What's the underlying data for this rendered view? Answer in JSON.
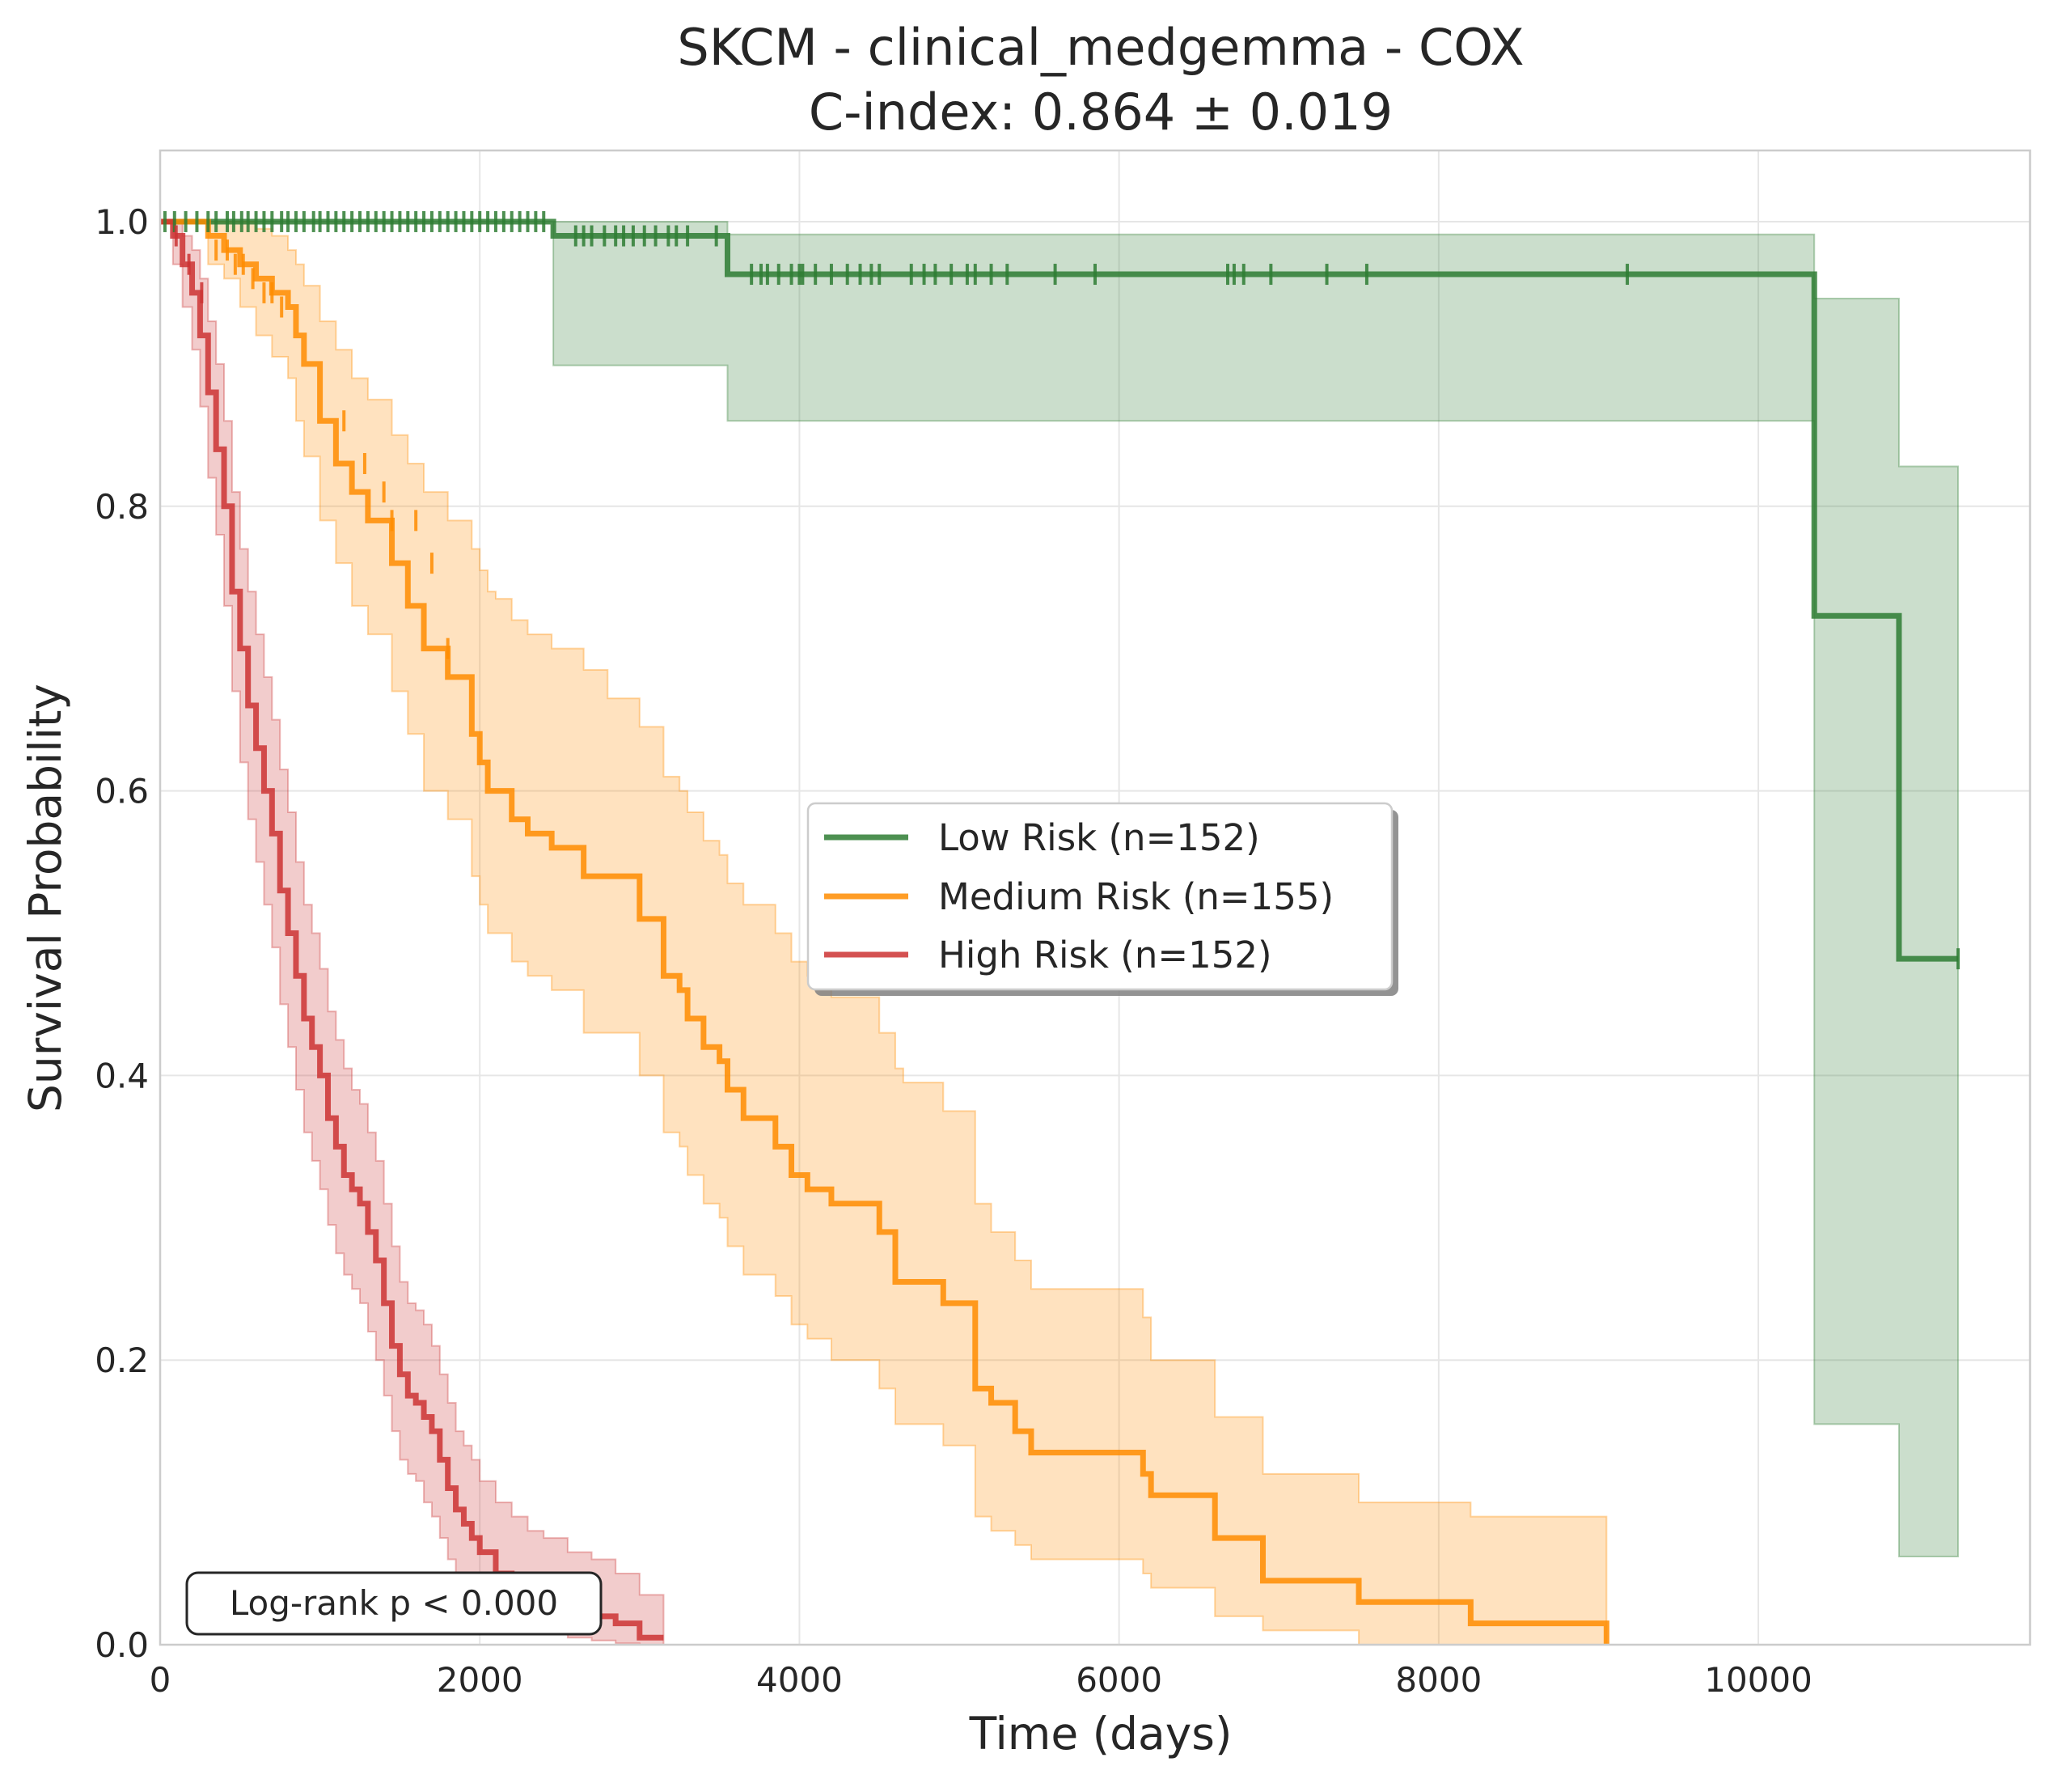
{
  "chart_data": {
    "type": "line",
    "subtype": "kaplan-meier",
    "title": "SKCM - clinical_medgemma - COX",
    "subtitle": "C-index: 0.864 ± 0.019",
    "xlabel": "Time (days)",
    "ylabel": "Survival Probability",
    "xlim": [
      0,
      11700
    ],
    "ylim": [
      0,
      1.05
    ],
    "xticks": [
      0,
      2000,
      4000,
      6000,
      8000,
      10000
    ],
    "xtick_labels": [
      "0",
      "2000",
      "4000",
      "6000",
      "8000",
      "10000"
    ],
    "yticks": [
      0,
      0.2,
      0.4,
      0.6,
      0.8,
      1.0
    ],
    "ytick_labels": [
      "0.0",
      "0.2",
      "0.4",
      "0.6",
      "0.8",
      "1.0"
    ],
    "grid": true,
    "legend_position": "center-right",
    "annotation": "Log-rank p < 0.000",
    "series": [
      {
        "name": "Low Risk (n=152)",
        "color": "#2e7d32",
        "x": [
          0,
          2460,
          3550,
          10350,
          10880,
          11250
        ],
        "y": [
          1.0,
          0.99,
          0.963,
          0.723,
          0.482,
          0.482
        ],
        "ci_upper": [
          1.0,
          1.0,
          0.991,
          0.946,
          0.828,
          0.828
        ],
        "ci_lower": [
          1.0,
          0.899,
          0.86,
          0.155,
          0.062,
          0.062
        ],
        "censor_x": [
          30,
          90,
          160,
          230,
          300,
          350,
          420,
          460,
          510,
          550,
          600,
          650,
          700,
          760,
          800,
          850,
          900,
          960,
          1000,
          1050,
          1100,
          1150,
          1200,
          1250,
          1300,
          1350,
          1400,
          1450,
          1500,
          1550,
          1600,
          1650,
          1700,
          1750,
          1800,
          1850,
          1900,
          1950,
          2000,
          2050,
          2100,
          2150,
          2200,
          2250,
          2300,
          2350,
          2400,
          2600,
          2650,
          2700,
          2780,
          2850,
          2900,
          2960,
          3030,
          3100,
          3180,
          3230,
          3300,
          3480,
          3700,
          3760,
          3800,
          3870,
          3950,
          4000,
          4020,
          4100,
          4200,
          4300,
          4380,
          4450,
          4500,
          4700,
          4780,
          4850,
          4950,
          5050,
          5100,
          5200,
          5300,
          5600,
          5850,
          6680,
          6720,
          6780,
          6950,
          7300,
          7550,
          9180,
          11250
        ],
        "censor_y": [
          1.0,
          1.0,
          1.0,
          1.0,
          1.0,
          1.0,
          1.0,
          1.0,
          1.0,
          1.0,
          1.0,
          1.0,
          1.0,
          1.0,
          1.0,
          1.0,
          1.0,
          1.0,
          1.0,
          1.0,
          1.0,
          1.0,
          1.0,
          1.0,
          1.0,
          1.0,
          1.0,
          1.0,
          1.0,
          1.0,
          1.0,
          1.0,
          1.0,
          1.0,
          1.0,
          1.0,
          1.0,
          1.0,
          1.0,
          1.0,
          1.0,
          1.0,
          1.0,
          1.0,
          1.0,
          1.0,
          1.0,
          0.99,
          0.99,
          0.99,
          0.99,
          0.99,
          0.99,
          0.99,
          0.99,
          0.99,
          0.99,
          0.99,
          0.99,
          0.99,
          0.963,
          0.963,
          0.963,
          0.963,
          0.963,
          0.963,
          0.963,
          0.963,
          0.963,
          0.963,
          0.963,
          0.963,
          0.963,
          0.963,
          0.963,
          0.963,
          0.963,
          0.963,
          0.963,
          0.963,
          0.963,
          0.963,
          0.963,
          0.963,
          0.963,
          0.963,
          0.963,
          0.963,
          0.963,
          0.963,
          0.482
        ]
      },
      {
        "name": "Medium Risk (n=155)",
        "color": "#ff8c00",
        "x": [
          0,
          300,
          400,
          500,
          600,
          700,
          800,
          850,
          900,
          1000,
          1100,
          1200,
          1300,
          1450,
          1550,
          1650,
          1800,
          1950,
          2000,
          2050,
          2100,
          2200,
          2300,
          2450,
          2650,
          2800,
          3000,
          3150,
          3250,
          3300,
          3400,
          3500,
          3550,
          3650,
          3850,
          3950,
          4050,
          4200,
          4500,
          4600,
          4650,
          4900,
          5100,
          5200,
          5350,
          5450,
          6150,
          6200,
          6600,
          6900,
          7500,
          8200,
          9050
        ],
        "y": [
          1.0,
          0.99,
          0.98,
          0.97,
          0.96,
          0.95,
          0.94,
          0.92,
          0.9,
          0.86,
          0.83,
          0.81,
          0.79,
          0.76,
          0.73,
          0.7,
          0.68,
          0.64,
          0.62,
          0.6,
          0.6,
          0.58,
          0.57,
          0.56,
          0.54,
          0.54,
          0.51,
          0.47,
          0.46,
          0.44,
          0.42,
          0.41,
          0.39,
          0.37,
          0.35,
          0.33,
          0.32,
          0.31,
          0.29,
          0.255,
          0.255,
          0.24,
          0.18,
          0.17,
          0.15,
          0.135,
          0.12,
          0.105,
          0.075,
          0.045,
          0.03,
          0.015,
          0.0
        ],
        "ci_upper": [
          1.0,
          1.0,
          1.0,
          1.0,
          0.995,
          0.99,
          0.98,
          0.97,
          0.955,
          0.93,
          0.91,
          0.89,
          0.875,
          0.85,
          0.83,
          0.81,
          0.79,
          0.77,
          0.755,
          0.74,
          0.735,
          0.72,
          0.71,
          0.7,
          0.685,
          0.665,
          0.645,
          0.61,
          0.6,
          0.585,
          0.565,
          0.555,
          0.535,
          0.52,
          0.5,
          0.48,
          0.47,
          0.455,
          0.43,
          0.405,
          0.395,
          0.375,
          0.31,
          0.29,
          0.27,
          0.25,
          0.23,
          0.2,
          0.16,
          0.12,
          0.1,
          0.09,
          0.07
        ],
        "ci_lower": [
          1.0,
          0.97,
          0.96,
          0.94,
          0.92,
          0.905,
          0.89,
          0.86,
          0.835,
          0.79,
          0.76,
          0.73,
          0.71,
          0.67,
          0.64,
          0.6,
          0.58,
          0.54,
          0.52,
          0.5,
          0.5,
          0.48,
          0.47,
          0.46,
          0.43,
          0.43,
          0.4,
          0.36,
          0.35,
          0.33,
          0.31,
          0.3,
          0.28,
          0.26,
          0.245,
          0.225,
          0.215,
          0.2,
          0.18,
          0.155,
          0.155,
          0.14,
          0.09,
          0.08,
          0.07,
          0.06,
          0.05,
          0.04,
          0.02,
          0.01,
          0.0,
          0.0,
          0.0
        ],
        "censor_x": [
          350,
          420,
          470,
          520,
          580,
          650,
          700,
          760,
          1150,
          1280,
          1400,
          1450,
          1600,
          1700,
          1800
        ],
        "censor_y": [
          0.98,
          0.98,
          0.97,
          0.97,
          0.96,
          0.95,
          0.95,
          0.94,
          0.86,
          0.83,
          0.81,
          0.79,
          0.79,
          0.76,
          0.7
        ]
      },
      {
        "name": "High Risk (n=152)",
        "color": "#cc3333",
        "x": [
          0,
          80,
          140,
          200,
          250,
          300,
          350,
          400,
          450,
          500,
          550,
          600,
          650,
          700,
          750,
          800,
          850,
          900,
          950,
          1000,
          1050,
          1100,
          1150,
          1200,
          1250,
          1300,
          1350,
          1400,
          1450,
          1500,
          1550,
          1600,
          1650,
          1700,
          1750,
          1800,
          1850,
          1900,
          1950,
          2000,
          2100,
          2200,
          2300,
          2400,
          2550,
          2700,
          2850,
          3000,
          3150
        ],
        "y": [
          1.0,
          0.99,
          0.97,
          0.95,
          0.92,
          0.88,
          0.84,
          0.8,
          0.74,
          0.7,
          0.66,
          0.63,
          0.6,
          0.57,
          0.53,
          0.5,
          0.47,
          0.44,
          0.42,
          0.4,
          0.37,
          0.35,
          0.33,
          0.32,
          0.31,
          0.29,
          0.27,
          0.24,
          0.21,
          0.19,
          0.175,
          0.17,
          0.16,
          0.15,
          0.13,
          0.11,
          0.095,
          0.085,
          0.075,
          0.065,
          0.05,
          0.04,
          0.035,
          0.03,
          0.025,
          0.02,
          0.015,
          0.005,
          0.005
        ],
        "ci_upper": [
          1.0,
          1.0,
          0.99,
          0.98,
          0.96,
          0.93,
          0.9,
          0.86,
          0.81,
          0.77,
          0.74,
          0.71,
          0.68,
          0.65,
          0.615,
          0.585,
          0.55,
          0.52,
          0.5,
          0.475,
          0.445,
          0.425,
          0.405,
          0.39,
          0.38,
          0.36,
          0.34,
          0.31,
          0.28,
          0.255,
          0.24,
          0.235,
          0.225,
          0.21,
          0.19,
          0.17,
          0.15,
          0.14,
          0.13,
          0.115,
          0.1,
          0.09,
          0.08,
          0.075,
          0.065,
          0.06,
          0.05,
          0.035,
          0.035
        ],
        "ci_lower": [
          1.0,
          0.97,
          0.94,
          0.91,
          0.87,
          0.82,
          0.78,
          0.73,
          0.67,
          0.62,
          0.58,
          0.55,
          0.52,
          0.49,
          0.45,
          0.42,
          0.39,
          0.36,
          0.34,
          0.32,
          0.295,
          0.275,
          0.26,
          0.25,
          0.24,
          0.22,
          0.2,
          0.175,
          0.15,
          0.13,
          0.12,
          0.115,
          0.1,
          0.09,
          0.075,
          0.06,
          0.045,
          0.04,
          0.035,
          0.03,
          0.02,
          0.015,
          0.01,
          0.008,
          0.005,
          0.003,
          0.001,
          0.0,
          0.0
        ],
        "censor_x": [
          100,
          180,
          260
        ],
        "censor_y": [
          0.99,
          0.97,
          0.95
        ]
      }
    ]
  }
}
